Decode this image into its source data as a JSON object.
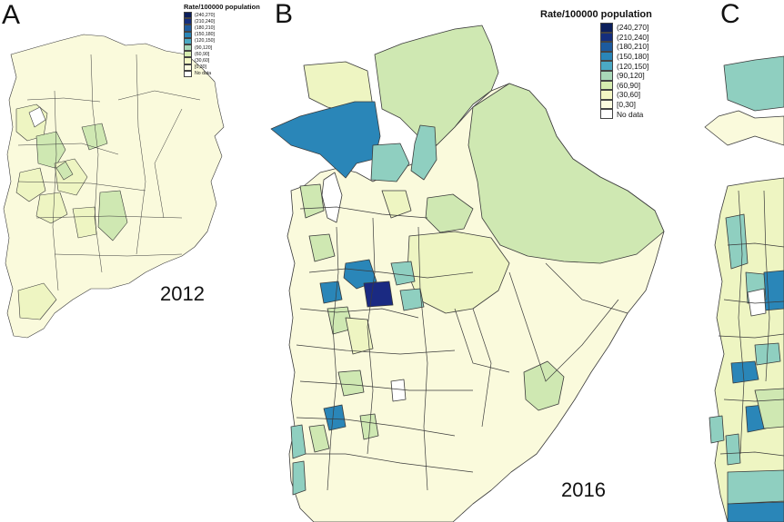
{
  "panels": [
    {
      "letter": "A",
      "year": "2012"
    },
    {
      "letter": "B",
      "year": "2016"
    },
    {
      "letter": "C"
    }
  ],
  "legend": {
    "title": "Rate/100000 population",
    "classes": [
      {
        "label": "(240,270]",
        "color": "#0b1f5c"
      },
      {
        "label": "(210,240]",
        "color": "#142e7d"
      },
      {
        "label": "(180,210]",
        "color": "#1d5b9e"
      },
      {
        "label": "(150,180]",
        "color": "#2a86b8"
      },
      {
        "label": "(120,150]",
        "color": "#4ba9c4"
      },
      {
        "label": "(90,120]",
        "color": "#a9d8b8"
      },
      {
        "label": "(60,90]",
        "color": "#d6ecb0"
      },
      {
        "label": "(30,60]",
        "color": "#f3f6c4"
      },
      {
        "label": "[0,30]",
        "color": "#fbfbdf"
      },
      {
        "label": "No data",
        "color": "#ffffff"
      }
    ]
  },
  "map_colors": {
    "stroke": "#3b3b3b",
    "base": "#fafadc",
    "low": "#eef5c2",
    "mid": "#cfe8b2",
    "teal": "#8fcfc0",
    "blue": "#2a86b8",
    "darkblue": "#1d4f9a",
    "navy": "#1a2a82"
  }
}
